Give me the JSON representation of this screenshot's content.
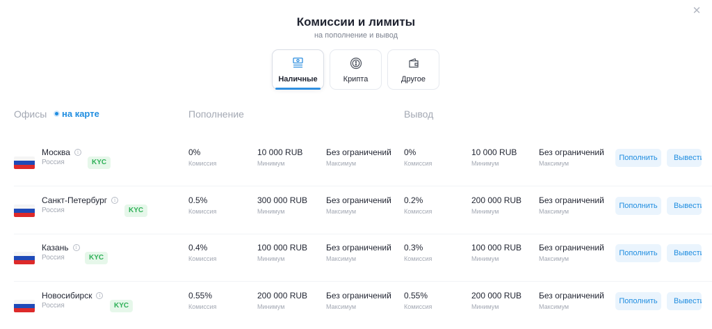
{
  "header": {
    "title": "Комиссии и лимиты",
    "subtitle": "на пополнение и вывод",
    "close_icon": "close-icon"
  },
  "tabs": [
    {
      "label": "Наличные",
      "icon": "cash-icon",
      "active": true
    },
    {
      "label": "Крипта",
      "icon": "crypto-coin-icon",
      "active": false
    },
    {
      "label": "Другое",
      "icon": "wallet-icon",
      "active": false
    }
  ],
  "table": {
    "offices_label": "Офисы",
    "map_link": "на карте",
    "deposit_label": "Пополнение",
    "withdraw_label": "Вывод",
    "kyc_label": "KYC",
    "commission_caption": "Комиссия",
    "min_caption": "Минимум",
    "max_caption": "Максимум",
    "deposit_button": "Пополнить",
    "withdraw_button": "Вывести",
    "rows": [
      {
        "city": "Москва",
        "country": "Россия",
        "dep_fee": "0%",
        "dep_min": "10 000 RUB",
        "dep_max": "Без ограничений",
        "wd_fee": "0%",
        "wd_min": "10 000 RUB",
        "wd_max": "Без ограничений"
      },
      {
        "city": "Санкт-Петербург",
        "country": "Россия",
        "dep_fee": "0.5%",
        "dep_min": "300 000 RUB",
        "dep_max": "Без ограничений",
        "wd_fee": "0.2%",
        "wd_min": "200 000 RUB",
        "wd_max": "Без ограничений"
      },
      {
        "city": "Казань",
        "country": "Россия",
        "dep_fee": "0.4%",
        "dep_min": "100 000 RUB",
        "dep_max": "Без ограничений",
        "wd_fee": "0.3%",
        "wd_min": "100 000 RUB",
        "wd_max": "Без ограничений"
      },
      {
        "city": "Новосибирск",
        "country": "Россия",
        "dep_fee": "0.55%",
        "dep_min": "200 000 RUB",
        "dep_max": "Без ограничений",
        "wd_fee": "0.55%",
        "wd_min": "200 000 RUB",
        "wd_max": "Без ограничений"
      }
    ]
  },
  "colors": {
    "accent": "#1f8de0",
    "kyc_bg": "#e6f7ea",
    "kyc_text": "#2eb057",
    "muted": "#a3a8b3"
  }
}
